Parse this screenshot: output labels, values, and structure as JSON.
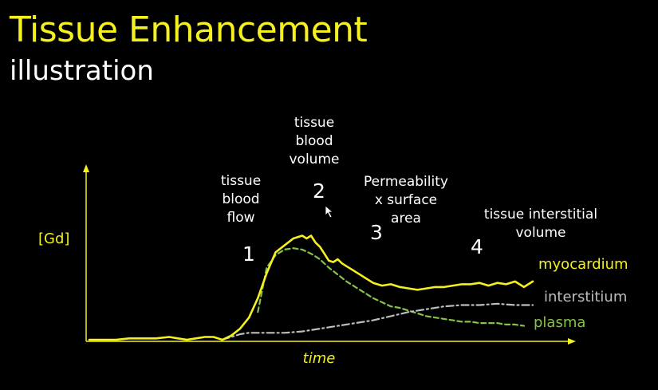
{
  "title": "Tissue Enhancement",
  "subtitle": "illustration",
  "colors": {
    "myocardium": "#f5f020",
    "interstitium": "#bdbdbd",
    "plasma": "#86c24a",
    "axis": "#f5f020",
    "background": "#000000"
  },
  "chart_data": {
    "type": "line",
    "xlabel": "time",
    "ylabel": "[Gd]",
    "xlim": [
      0,
      100
    ],
    "ylim": [
      0,
      100
    ],
    "grid": false,
    "series": [
      {
        "name": "myocardium",
        "style": "solid",
        "points": [
          [
            0,
            0
          ],
          [
            2,
            0
          ],
          [
            6,
            0
          ],
          [
            9,
            1
          ],
          [
            12,
            1
          ],
          [
            15,
            1
          ],
          [
            18,
            2
          ],
          [
            20,
            1
          ],
          [
            22,
            0
          ],
          [
            24,
            1
          ],
          [
            26,
            2
          ],
          [
            28,
            2
          ],
          [
            30,
            0
          ],
          [
            32,
            3
          ],
          [
            34,
            8
          ],
          [
            36,
            16
          ],
          [
            38,
            30
          ],
          [
            40,
            48
          ],
          [
            42,
            63
          ],
          [
            44,
            68
          ],
          [
            46,
            73
          ],
          [
            48,
            75
          ],
          [
            49,
            73
          ],
          [
            50,
            75
          ],
          [
            51,
            70
          ],
          [
            52,
            67
          ],
          [
            53,
            62
          ],
          [
            54,
            57
          ],
          [
            55,
            56
          ],
          [
            56,
            58
          ],
          [
            57,
            55
          ],
          [
            58,
            53
          ],
          [
            60,
            49
          ],
          [
            62,
            45
          ],
          [
            64,
            41
          ],
          [
            66,
            39
          ],
          [
            68,
            40
          ],
          [
            70,
            38
          ],
          [
            72,
            37
          ],
          [
            74,
            36
          ],
          [
            76,
            37
          ],
          [
            78,
            38
          ],
          [
            80,
            38
          ],
          [
            82,
            39
          ],
          [
            84,
            40
          ],
          [
            86,
            40
          ],
          [
            88,
            41
          ],
          [
            90,
            39
          ],
          [
            92,
            41
          ],
          [
            94,
            40
          ],
          [
            96,
            42
          ],
          [
            98,
            38
          ],
          [
            100,
            42
          ]
        ]
      },
      {
        "name": "plasma",
        "style": "dashed",
        "points": [
          [
            38,
            20
          ],
          [
            40,
            52
          ],
          [
            42,
            61
          ],
          [
            44,
            65
          ],
          [
            46,
            66
          ],
          [
            48,
            65
          ],
          [
            50,
            62
          ],
          [
            52,
            58
          ],
          [
            54,
            52
          ],
          [
            56,
            47
          ],
          [
            58,
            42
          ],
          [
            60,
            38
          ],
          [
            62,
            34
          ],
          [
            64,
            30
          ],
          [
            66,
            27
          ],
          [
            68,
            24
          ],
          [
            70,
            23
          ],
          [
            72,
            21
          ],
          [
            74,
            19
          ],
          [
            76,
            17
          ],
          [
            78,
            16
          ],
          [
            80,
            15
          ],
          [
            82,
            14
          ],
          [
            84,
            13
          ],
          [
            86,
            13
          ],
          [
            88,
            12
          ],
          [
            90,
            12
          ],
          [
            92,
            12
          ],
          [
            94,
            11
          ],
          [
            96,
            11
          ],
          [
            98,
            10
          ]
        ]
      },
      {
        "name": "interstitium",
        "style": "dash-dot",
        "points": [
          [
            30,
            0
          ],
          [
            34,
            4
          ],
          [
            36,
            5
          ],
          [
            40,
            5
          ],
          [
            44,
            5
          ],
          [
            48,
            6
          ],
          [
            52,
            8
          ],
          [
            56,
            10
          ],
          [
            60,
            12
          ],
          [
            64,
            14
          ],
          [
            68,
            17
          ],
          [
            72,
            20
          ],
          [
            76,
            22
          ],
          [
            80,
            24
          ],
          [
            84,
            25
          ],
          [
            88,
            25
          ],
          [
            92,
            26
          ],
          [
            96,
            25
          ],
          [
            100,
            25
          ]
        ]
      }
    ],
    "annotations": [
      {
        "number": "1",
        "label": "tissue\nblood\nflow"
      },
      {
        "number": "2",
        "label": "tissue\nblood\nvolume"
      },
      {
        "number": "3",
        "label": "Permeability\nx surface\narea"
      },
      {
        "number": "4",
        "label": "tissue interstitial\nvolume"
      }
    ]
  }
}
